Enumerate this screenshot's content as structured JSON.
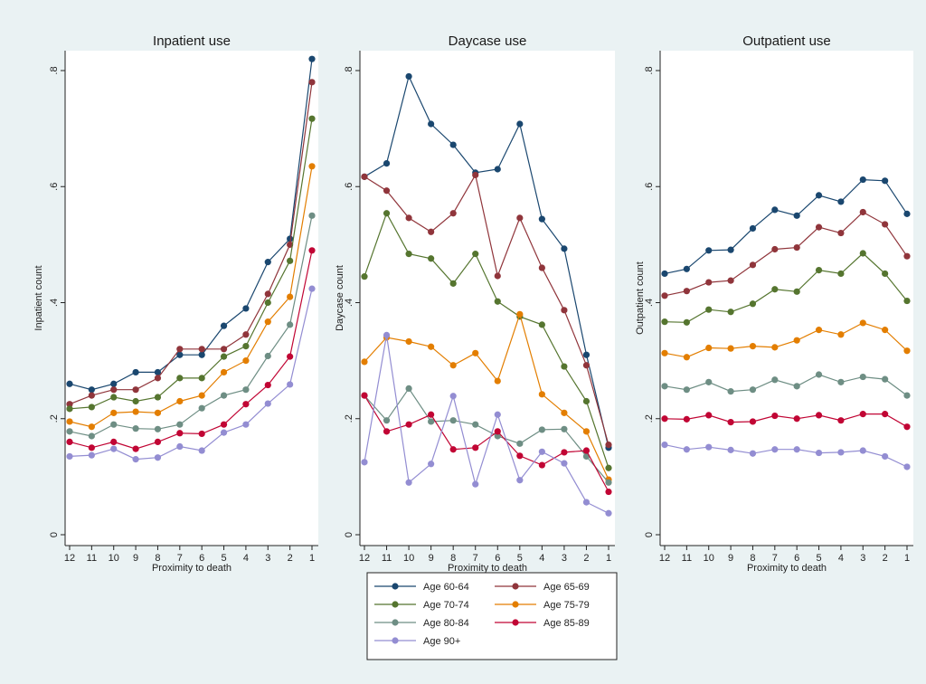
{
  "chart_data": [
    {
      "type": "line",
      "title": "Inpatient use",
      "xlabel": "Proximity to death",
      "ylabel": "Inpatient count",
      "x": [
        12,
        11,
        10,
        9,
        8,
        7,
        6,
        5,
        4,
        3,
        2,
        1
      ],
      "ylim": [
        0,
        0.8
      ],
      "yticks": [
        "0",
        ".2",
        ".4",
        ".6",
        ".8"
      ],
      "grid": false,
      "series": [
        {
          "name": "Age 60-64",
          "values": [
            0.26,
            0.25,
            0.26,
            0.28,
            0.28,
            0.31,
            0.31,
            0.36,
            0.39,
            0.47,
            0.51,
            0.82
          ]
        },
        {
          "name": "Age 65-69",
          "values": [
            0.225,
            0.24,
            0.25,
            0.25,
            0.27,
            0.32,
            0.32,
            0.32,
            0.345,
            0.415,
            0.5,
            0.78
          ]
        },
        {
          "name": "Age 70-74",
          "values": [
            0.217,
            0.22,
            0.237,
            0.23,
            0.237,
            0.27,
            0.27,
            0.307,
            0.325,
            0.4,
            0.472,
            0.717
          ]
        },
        {
          "name": "Age 75-79",
          "values": [
            0.195,
            0.186,
            0.21,
            0.212,
            0.21,
            0.23,
            0.24,
            0.28,
            0.3,
            0.367,
            0.41,
            0.635
          ]
        },
        {
          "name": "Age 80-84",
          "values": [
            0.178,
            0.17,
            0.19,
            0.183,
            0.182,
            0.19,
            0.218,
            0.24,
            0.25,
            0.308,
            0.362,
            0.55
          ]
        },
        {
          "name": "Age 85-89",
          "values": [
            0.16,
            0.15,
            0.16,
            0.148,
            0.16,
            0.175,
            0.174,
            0.19,
            0.225,
            0.258,
            0.307,
            0.49
          ]
        },
        {
          "name": "Age 90+",
          "values": [
            0.135,
            0.137,
            0.148,
            0.13,
            0.133,
            0.152,
            0.145,
            0.176,
            0.19,
            0.226,
            0.259,
            0.424
          ]
        }
      ]
    },
    {
      "type": "line",
      "title": "Daycase use",
      "xlabel": "Proximity to death",
      "ylabel": "Daycase count",
      "x": [
        12,
        11,
        10,
        9,
        8,
        7,
        6,
        5,
        4,
        3,
        2,
        1
      ],
      "ylim": [
        0,
        0.8
      ],
      "yticks": [
        "0",
        ".2",
        ".4",
        ".6",
        ".8"
      ],
      "grid": false,
      "series": [
        {
          "name": "Age 60-64",
          "values": [
            0.617,
            0.64,
            0.79,
            0.708,
            0.672,
            0.624,
            0.63,
            0.708,
            0.544,
            0.493,
            0.31,
            0.15
          ]
        },
        {
          "name": "Age 65-69",
          "values": [
            0.617,
            0.593,
            0.546,
            0.522,
            0.554,
            0.62,
            0.446,
            0.546,
            0.46,
            0.387,
            0.292,
            0.155
          ]
        },
        {
          "name": "Age 70-74",
          "values": [
            0.445,
            0.554,
            0.484,
            0.476,
            0.433,
            0.484,
            0.402,
            0.376,
            0.362,
            0.29,
            0.23,
            0.115
          ]
        },
        {
          "name": "Age 75-79",
          "values": [
            0.298,
            0.34,
            0.333,
            0.324,
            0.292,
            0.313,
            0.265,
            0.38,
            0.242,
            0.21,
            0.178,
            0.095
          ]
        },
        {
          "name": "Age 80-84",
          "values": [
            0.24,
            0.197,
            0.252,
            0.195,
            0.197,
            0.19,
            0.17,
            0.157,
            0.181,
            0.182,
            0.135,
            0.09
          ]
        },
        {
          "name": "Age 85-89",
          "values": [
            0.24,
            0.178,
            0.19,
            0.207,
            0.147,
            0.15,
            0.178,
            0.136,
            0.12,
            0.142,
            0.145,
            0.074
          ]
        },
        {
          "name": "Age 90+",
          "values": [
            0.125,
            0.344,
            0.09,
            0.122,
            0.239,
            0.087,
            0.207,
            0.094,
            0.143,
            0.123,
            0.056,
            0.037
          ]
        }
      ]
    },
    {
      "type": "line",
      "title": "Outpatient use",
      "xlabel": "Proximity to death",
      "ylabel": "Outpatient count",
      "x": [
        12,
        11,
        10,
        9,
        8,
        7,
        6,
        5,
        4,
        3,
        2,
        1
      ],
      "ylim": [
        0,
        0.8
      ],
      "yticks": [
        "0",
        ".2",
        ".4",
        ".6",
        ".8"
      ],
      "grid": false,
      "series": [
        {
          "name": "Age 60-64",
          "values": [
            0.45,
            0.458,
            0.49,
            0.491,
            0.528,
            0.56,
            0.55,
            0.585,
            0.574,
            0.612,
            0.61,
            0.553
          ]
        },
        {
          "name": "Age 65-69",
          "values": [
            0.412,
            0.42,
            0.435,
            0.438,
            0.465,
            0.492,
            0.495,
            0.53,
            0.52,
            0.556,
            0.535,
            0.48
          ]
        },
        {
          "name": "Age 70-74",
          "values": [
            0.367,
            0.366,
            0.388,
            0.384,
            0.398,
            0.423,
            0.419,
            0.456,
            0.45,
            0.485,
            0.45,
            0.403
          ]
        },
        {
          "name": "Age 75-79",
          "values": [
            0.313,
            0.306,
            0.322,
            0.321,
            0.325,
            0.323,
            0.335,
            0.353,
            0.345,
            0.365,
            0.353,
            0.317
          ]
        },
        {
          "name": "Age 80-84",
          "values": [
            0.256,
            0.25,
            0.263,
            0.247,
            0.25,
            0.267,
            0.256,
            0.276,
            0.263,
            0.272,
            0.268,
            0.24
          ]
        },
        {
          "name": "Age 85-89",
          "values": [
            0.2,
            0.199,
            0.206,
            0.194,
            0.195,
            0.205,
            0.2,
            0.206,
            0.197,
            0.208,
            0.208,
            0.186
          ]
        },
        {
          "name": "Age 90+",
          "values": [
            0.155,
            0.147,
            0.151,
            0.146,
            0.14,
            0.147,
            0.147,
            0.141,
            0.142,
            0.145,
            0.135,
            0.117
          ]
        }
      ]
    }
  ],
  "legend": {
    "placement": "bottom",
    "items": [
      {
        "label": "Age 60-64",
        "color": "#1a476f"
      },
      {
        "label": "Age 65-69",
        "color": "#90353b"
      },
      {
        "label": "Age 70-74",
        "color": "#55752f"
      },
      {
        "label": "Age 75-79",
        "color": "#e37e00"
      },
      {
        "label": "Age 80-84",
        "color": "#6e8e84"
      },
      {
        "label": "Age 85-89",
        "color": "#c10534"
      },
      {
        "label": "Age 90+",
        "color": "#938dd2"
      }
    ]
  }
}
